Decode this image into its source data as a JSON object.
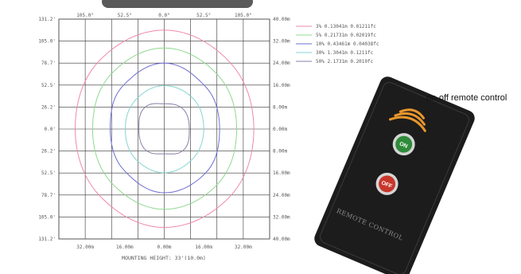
{
  "chart_data": {
    "type": "isolux-contour",
    "top_tick_labels": [
      "105.0°",
      "52.5°",
      "0.0°",
      "52.5°",
      "105.0°"
    ],
    "left_tick_labels": [
      "131.2'",
      "105.0'",
      "78.7'",
      "52.5'",
      "26.2'",
      "0.0'",
      "26.2'",
      "52.5'",
      "78.7'",
      "105.0'",
      "131.2'"
    ],
    "right_tick_labels": [
      "40.00m",
      "32.00m",
      "24.00m",
      "16.00m",
      "8.00m",
      "0.00m",
      "8.00m",
      "16.00m",
      "24.00m",
      "32.00m",
      "40.00m"
    ],
    "bottom_tick_labels": [
      "32.00m",
      "16.00m",
      "0.00m",
      "16.00m",
      "32.00m"
    ],
    "xlabel": "MOUNTING HEIGHT: 33'(10.0m)",
    "x_extent_m": [
      -40,
      40
    ],
    "y_extent_m": [
      -40,
      40
    ],
    "legend": [
      {
        "label": "3% 0.13041m 0.01211fc",
        "color": "#ee8aa6"
      },
      {
        "label": "5% 0.21731m 0.02019fc",
        "color": "#8fd98f"
      },
      {
        "label": "10% 0.43461m 0.04038fc",
        "color": "#6e6ed2"
      },
      {
        "label": "30% 1.3041m 0.1211fc",
        "color": "#86d6cf"
      },
      {
        "label": "50% 2.1731m 0.2019fc",
        "color": "#8a7ea8"
      }
    ],
    "contours": [
      {
        "color": "#ee8aa6",
        "radii_m": [
          34.0,
          34.8,
          36.0,
          35.0,
          33.8,
          34.5,
          35.8,
          35.0
        ]
      },
      {
        "color": "#8fd98f",
        "radii_m": [
          27.5,
          28.3,
          29.5,
          28.4,
          27.2,
          28.0,
          29.2,
          28.5
        ]
      },
      {
        "color": "#6e6ed2",
        "radii_m": [
          21.0,
          22.0,
          24.0,
          22.2,
          20.5,
          21.4,
          23.2,
          22.4
        ]
      },
      {
        "color": "#86d6cf",
        "radii_m": [
          15.0,
          15.6,
          15.8,
          15.2,
          14.8,
          15.4,
          15.9,
          15.3
        ]
      },
      {
        "color": "#8a7ea8",
        "radii_m": [
          9.5,
          10.2,
          9.2,
          10.8,
          9.6,
          10.4,
          9.0,
          10.6
        ]
      }
    ]
  },
  "remote": {
    "caption": "on-off remote control",
    "on_label": "ON",
    "off_label": "OFF",
    "brand_text": "REMOTE CONTROL"
  }
}
